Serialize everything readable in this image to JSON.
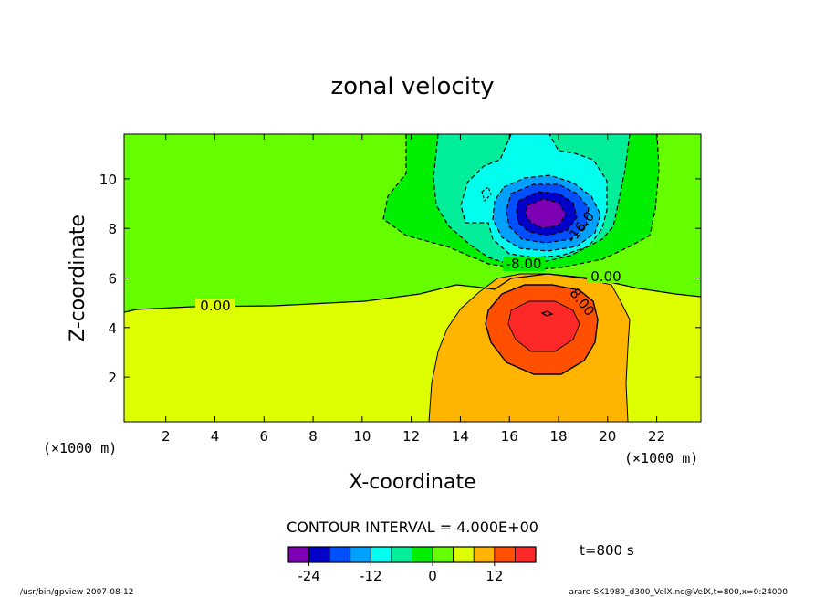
{
  "chart_data": {
    "type": "contour",
    "title": "zonal velocity",
    "xlabel": "X-coordinate",
    "ylabel": "Z-coordinate",
    "x_unit_left": "(×1000 m)",
    "x_unit_right": "(×1000 m)",
    "xlim": [
      0.3,
      23.8
    ],
    "ylim": [
      0.2,
      11.8
    ],
    "x_ticks": [
      "2",
      "4",
      "6",
      "8",
      "10",
      "12",
      "14",
      "16",
      "18",
      "20",
      "22"
    ],
    "y_ticks": [
      "2",
      "4",
      "6",
      "8",
      "10"
    ],
    "contour_labels": [
      "0.00",
      "-8.00",
      "0.00",
      "-16.0",
      "8.00"
    ],
    "contour_interval_text": "CONTOUR INTERVAL = 4.000E+00",
    "time_text": "t=800 s",
    "colorbar": {
      "colors": [
        "#7d00b4",
        "#0000c8",
        "#0050ff",
        "#00a0ff",
        "#00ffee",
        "#00ee99",
        "#00ee00",
        "#66ff00",
        "#ddff00",
        "#ffb400",
        "#ff5000",
        "#ff2828"
      ],
      "tick_labels": [
        "-24",
        "-12",
        "0",
        "12"
      ],
      "tick_values": [
        -24,
        -12,
        0,
        12
      ],
      "min": -28,
      "max": 20
    },
    "footer_left": "/usr/bin/gpview   2007-08-12",
    "footer_right": "arare-SK1989_d300_VelX.nc@VelX,t=800,x=0:24000"
  }
}
